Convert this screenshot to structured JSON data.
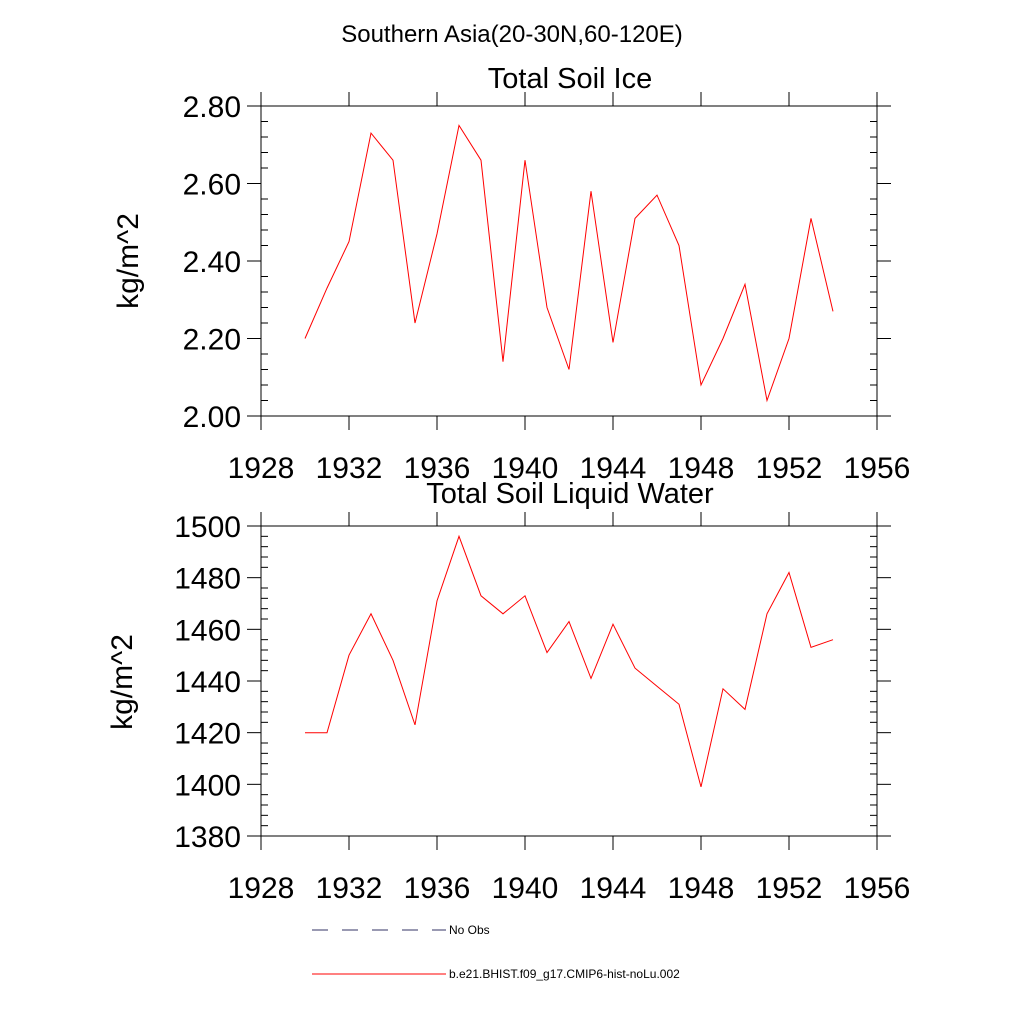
{
  "figure_title": "Southern Asia(20-30N,60-120E)",
  "colors": {
    "series": "#ff0000",
    "no_obs": "#333366",
    "axis": "#000000"
  },
  "legend": {
    "no_obs_label": "No Obs",
    "series_label": "b.e21.BHIST.f09_g17.CMIP6-hist-noLu.002"
  },
  "chart_data": [
    {
      "type": "line",
      "title": "Total Soil Ice",
      "xlabel": "",
      "ylabel": "kg/m^2",
      "xlim": [
        1928,
        1956
      ],
      "ylim": [
        2.0,
        2.8
      ],
      "xticks": [
        1928,
        1932,
        1936,
        1940,
        1944,
        1948,
        1952,
        1956
      ],
      "xtick_labels": [
        "1928",
        "1932",
        "1936",
        "1940",
        "1944",
        "1948",
        "1952",
        "1956"
      ],
      "yticks": [
        2.0,
        2.2,
        2.4,
        2.6,
        2.8
      ],
      "ytick_labels": [
        "2.00",
        "2.20",
        "2.40",
        "2.60",
        "2.80"
      ],
      "grid": false,
      "x": [
        1930,
        1931,
        1932,
        1933,
        1934,
        1935,
        1936,
        1937,
        1938,
        1939,
        1940,
        1941,
        1942,
        1943,
        1944,
        1945,
        1946,
        1947,
        1948,
        1949,
        1950,
        1951,
        1952,
        1953,
        1954
      ],
      "series": [
        {
          "name": "b.e21.BHIST.f09_g17.CMIP6-hist-noLu.002",
          "values": [
            2.2,
            2.33,
            2.45,
            2.73,
            2.66,
            2.24,
            2.47,
            2.75,
            2.66,
            2.14,
            2.66,
            2.28,
            2.12,
            2.58,
            2.19,
            2.51,
            2.57,
            2.44,
            2.08,
            2.2,
            2.34,
            2.04,
            2.2,
            2.51,
            2.27
          ]
        }
      ]
    },
    {
      "type": "line",
      "title": "Total Soil Liquid Water",
      "xlabel": "",
      "ylabel": "kg/m^2",
      "xlim": [
        1928,
        1956
      ],
      "ylim": [
        1380,
        1500
      ],
      "xticks": [
        1928,
        1932,
        1936,
        1940,
        1944,
        1948,
        1952,
        1956
      ],
      "xtick_labels": [
        "1928",
        "1932",
        "1936",
        "1940",
        "1944",
        "1948",
        "1952",
        "1956"
      ],
      "yticks": [
        1380,
        1400,
        1420,
        1440,
        1460,
        1480,
        1500
      ],
      "ytick_labels": [
        "1380",
        "1400",
        "1420",
        "1440",
        "1460",
        "1480",
        "1500"
      ],
      "grid": false,
      "x": [
        1930,
        1931,
        1932,
        1933,
        1934,
        1935,
        1936,
        1937,
        1938,
        1939,
        1940,
        1941,
        1942,
        1943,
        1944,
        1945,
        1946,
        1947,
        1948,
        1949,
        1950,
        1951,
        1952,
        1953,
        1954
      ],
      "series": [
        {
          "name": "b.e21.BHIST.f09_g17.CMIP6-hist-noLu.002",
          "values": [
            1420,
            1420,
            1450,
            1466,
            1448,
            1423,
            1471,
            1496,
            1473,
            1466,
            1473,
            1451,
            1463,
            1441,
            1462,
            1445,
            1438,
            1431,
            1399,
            1437,
            1429,
            1466,
            1482,
            1453,
            1456
          ]
        }
      ]
    }
  ]
}
